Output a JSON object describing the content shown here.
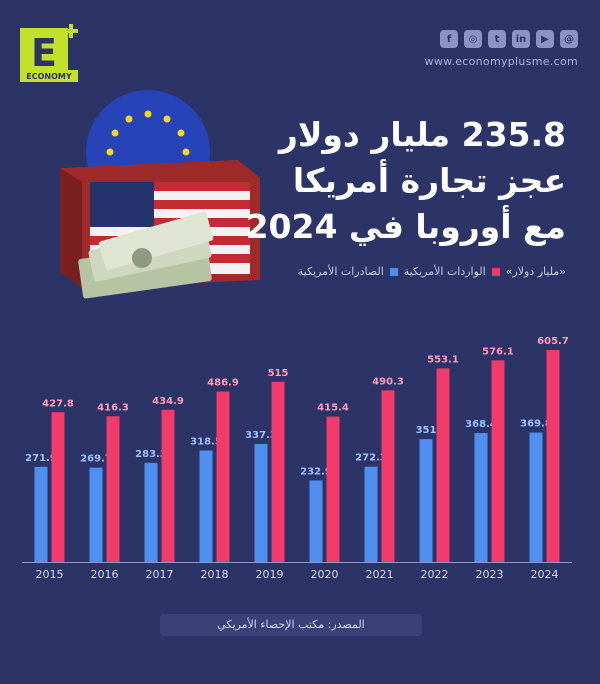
{
  "header": {
    "logo_letter": "E",
    "logo_word": "ECONOMY",
    "website": "www.economyplusme.com",
    "socials": [
      "facebook-icon",
      "instagram-icon",
      "twitter-icon",
      "linkedin-icon",
      "youtube-icon",
      "threads-icon"
    ]
  },
  "title_lines": [
    "235.8 مليار دولار",
    "عجز تجارة أمريكا",
    "مع أوروبا في 2024"
  ],
  "legend": {
    "unit": "«مليار دولار»",
    "imports_label": "الواردات الأمريكية",
    "exports_label": "الصادرات الأمريكية",
    "imports_color": "#f23a6b",
    "exports_color": "#4f8ff0"
  },
  "source": "المصدر: مكتب الإحصاء الأمريكي",
  "chart_data": {
    "type": "bar",
    "categories": [
      "2015",
      "2016",
      "2017",
      "2018",
      "2019",
      "2020",
      "2021",
      "2022",
      "2023",
      "2024"
    ],
    "series": [
      {
        "name": "الصادرات الأمريكية",
        "color": "#4f8ff0",
        "values": [
          271.9,
          269.7,
          283.3,
          318.5,
          337.3,
          232.9,
          272.3,
          351,
          368.4,
          369.8
        ]
      },
      {
        "name": "الواردات الأمريكية",
        "color": "#f23a6b",
        "values": [
          427.8,
          416.3,
          434.9,
          486.9,
          515,
          415.4,
          490.3,
          553.1,
          576.1,
          605.7
        ]
      }
    ],
    "ylim": [
      0,
      720
    ],
    "grid": false,
    "legend_position": "top-right"
  }
}
